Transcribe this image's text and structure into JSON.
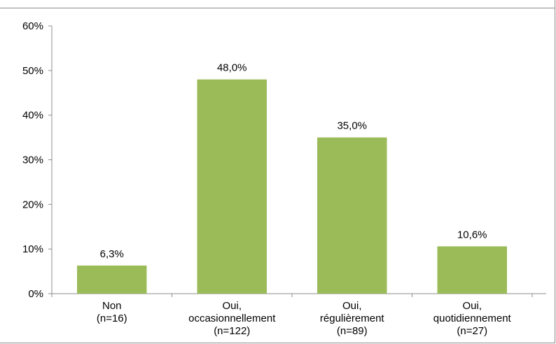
{
  "chart_data": {
    "type": "bar",
    "categories": [
      [
        "Non",
        "(n=16)"
      ],
      [
        "Oui,",
        "occasionnellement",
        "(n=122)"
      ],
      [
        "Oui,",
        "régulièrement",
        "(n=89)"
      ],
      [
        "Oui,",
        "quotidiennement",
        "(n=27)"
      ]
    ],
    "values": [
      6.3,
      48.0,
      35.0,
      10.6
    ],
    "data_labels": [
      "6,3%",
      "48,0%",
      "35,0%",
      "10,6%"
    ],
    "ylim": [
      0,
      60
    ],
    "yticks": [
      0,
      10,
      20,
      30,
      40,
      50,
      60
    ],
    "ytick_labels": [
      "0%",
      "10%",
      "20%",
      "30%",
      "40%",
      "50%",
      "60%"
    ],
    "bar_color": "#9bbb59",
    "grid": false,
    "legend": "none",
    "title": "",
    "xlabel": "",
    "ylabel": ""
  }
}
